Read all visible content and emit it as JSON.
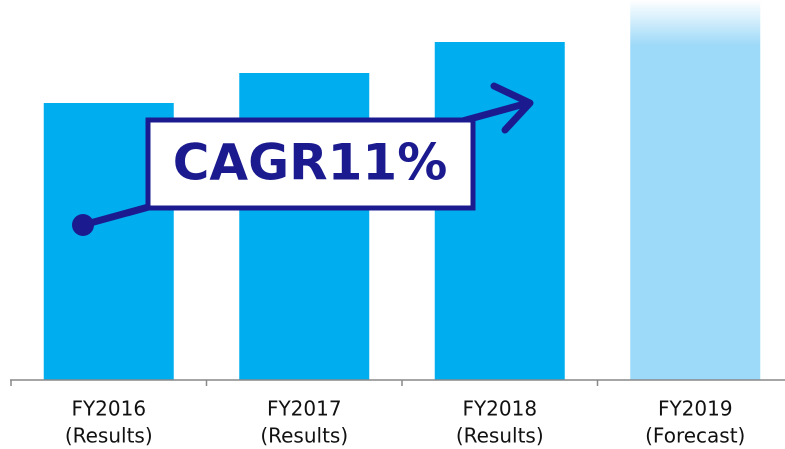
{
  "chart_data": {
    "type": "bar",
    "categories": [
      [
        "FY2016",
        "(Results)"
      ],
      [
        "FY2017",
        "(Results)"
      ],
      [
        "FY2018",
        "(Results)"
      ],
      [
        "FY2019",
        "(Forecast)"
      ]
    ],
    "values": [
      277,
      307,
      338,
      380
    ],
    "colors": [
      "#00aeef",
      "#00aeef",
      "#00aeef",
      "#9dd9f8"
    ],
    "ylim": [
      0,
      380
    ],
    "annotation": "CAGR11%"
  }
}
